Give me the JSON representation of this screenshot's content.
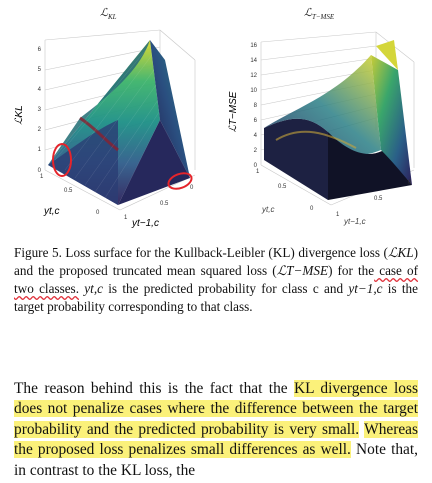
{
  "figure": {
    "left_plot": {
      "title_main": "ℒ",
      "title_sub": "KL",
      "z_axis_label": "ℒKL",
      "z_ticks": [
        "0",
        "1",
        "2",
        "3",
        "4",
        "5",
        "6"
      ],
      "x_label": "yt,c",
      "y_label": "yt−1,c",
      "x_ticks": [
        "1",
        "0.5",
        "0"
      ],
      "y_ticks": [
        "1",
        "0.5",
        "0"
      ],
      "annotation_color": "#e5242b"
    },
    "right_plot": {
      "title_main": "ℒ",
      "title_sub": "T−MSE",
      "z_axis_label": "ℒT−MSE",
      "z_ticks": [
        "0",
        "2",
        "4",
        "6",
        "8",
        "10",
        "12",
        "14",
        "16"
      ],
      "x_label": "yt,c",
      "y_label": "yt−1,c",
      "x_ticks": [
        "1",
        "0.5",
        "0"
      ],
      "y_ticks": [
        "1",
        "0.5",
        "0"
      ]
    },
    "colormap": [
      "#2c1f5a",
      "#2f5c8a",
      "#1c8f86",
      "#3cb36a",
      "#8acb3e",
      "#d8d628"
    ]
  },
  "caption": {
    "p1": "Figure 5. Loss surface for the Kullback-Leibler (KL) divergence loss (",
    "m1": "ℒKL",
    "p2": ") and the proposed truncated mean squared loss (",
    "m2": "ℒT−MSE",
    "p3": ") for the",
    "underlined": " case of two classes.",
    "p4": " ",
    "m3": "yt,c",
    "p5": " is the predicted probability for class c and ",
    "m4": "yt−1,c",
    "p6": " is the target probability corresponding to that class."
  },
  "body": {
    "t1": "The reason behind this is the fact that the ",
    "h1": "KL divergence loss does not penalize cases where the difference between the target probability and the predicted probability is very small.",
    "t2": " ",
    "h2": "Whereas the proposed loss penalizes small differences as well.",
    "t3": " Note that, in contrast to the KL loss, the"
  }
}
